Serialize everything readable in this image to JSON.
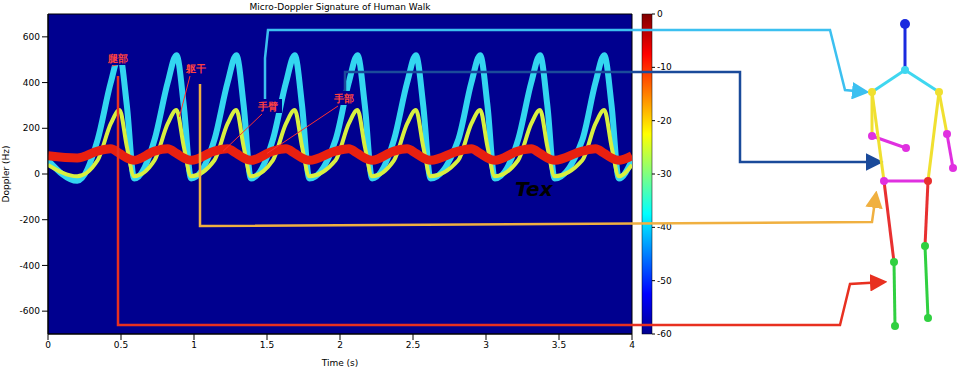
{
  "chart_data": {
    "type": "line",
    "title": "Micro-Doppler Signature of Human Walk",
    "x_label": "Time (s)",
    "y_label": "Doppler (Hz)",
    "x": [
      0.0,
      0.2,
      0.34,
      0.43,
      0.49,
      0.54,
      0.59,
      0.73,
      0.82,
      0.88,
      0.93,
      0.98,
      1.14,
      1.23,
      1.29,
      1.34,
      1.39,
      1.54,
      1.63,
      1.69,
      1.74,
      1.79,
      1.97,
      2.06,
      2.12,
      2.17,
      2.22,
      2.37,
      2.46,
      2.52,
      2.57,
      2.62,
      2.81,
      2.9,
      2.96,
      3.01,
      3.06,
      3.22,
      3.31,
      3.37,
      3.42,
      3.47,
      3.66,
      3.75,
      3.81,
      3.86,
      3.91,
      4.0
    ],
    "series": [
      {
        "color": "#33d6f0",
        "values": [
          60,
          -30,
          150,
          400,
          520,
          300,
          -20,
          150,
          400,
          520,
          300,
          -20,
          150,
          400,
          520,
          300,
          -20,
          150,
          400,
          520,
          300,
          -20,
          150,
          400,
          520,
          300,
          -20,
          150,
          400,
          520,
          300,
          -20,
          150,
          400,
          520,
          300,
          -20,
          150,
          400,
          520,
          300,
          -20,
          150,
          400,
          520,
          300,
          -20,
          60
        ]
      },
      {
        "color": "#d8f040",
        "values": [
          40,
          -10,
          60,
          220,
          280,
          120,
          -10,
          60,
          220,
          280,
          120,
          -10,
          60,
          220,
          280,
          120,
          -10,
          60,
          220,
          280,
          120,
          -10,
          60,
          220,
          280,
          120,
          -10,
          60,
          220,
          280,
          120,
          -10,
          60,
          220,
          280,
          120,
          -10,
          60,
          220,
          280,
          120,
          -10,
          60,
          220,
          280,
          120,
          -10,
          40
        ]
      },
      {
        "color": "#e82010",
        "values": [
          80,
          70,
          100,
          110,
          90,
          70,
          60,
          100,
          110,
          90,
          70,
          60,
          100,
          110,
          90,
          70,
          60,
          100,
          110,
          90,
          70,
          60,
          100,
          110,
          90,
          70,
          60,
          100,
          110,
          90,
          70,
          60,
          100,
          110,
          90,
          70,
          60,
          100,
          110,
          90,
          70,
          60,
          100,
          110,
          90,
          70,
          60,
          80
        ]
      }
    ],
    "xlim": [
      0,
      4
    ],
    "xticks": [
      0,
      0.5,
      1,
      1.5,
      2,
      2.5,
      3,
      3.5,
      4
    ],
    "ylim": [
      -700,
      700
    ],
    "yticks": [
      -600,
      -400,
      -200,
      0,
      200,
      400,
      600
    ],
    "colorbar": {
      "range": [
        -60,
        0
      ],
      "ticks": [
        -60,
        -50,
        -40,
        -30,
        -20,
        -10,
        0
      ]
    },
    "annotations": [
      "腿部",
      "躯干",
      "手臂",
      "手部"
    ],
    "overlay_text": "Tex"
  }
}
